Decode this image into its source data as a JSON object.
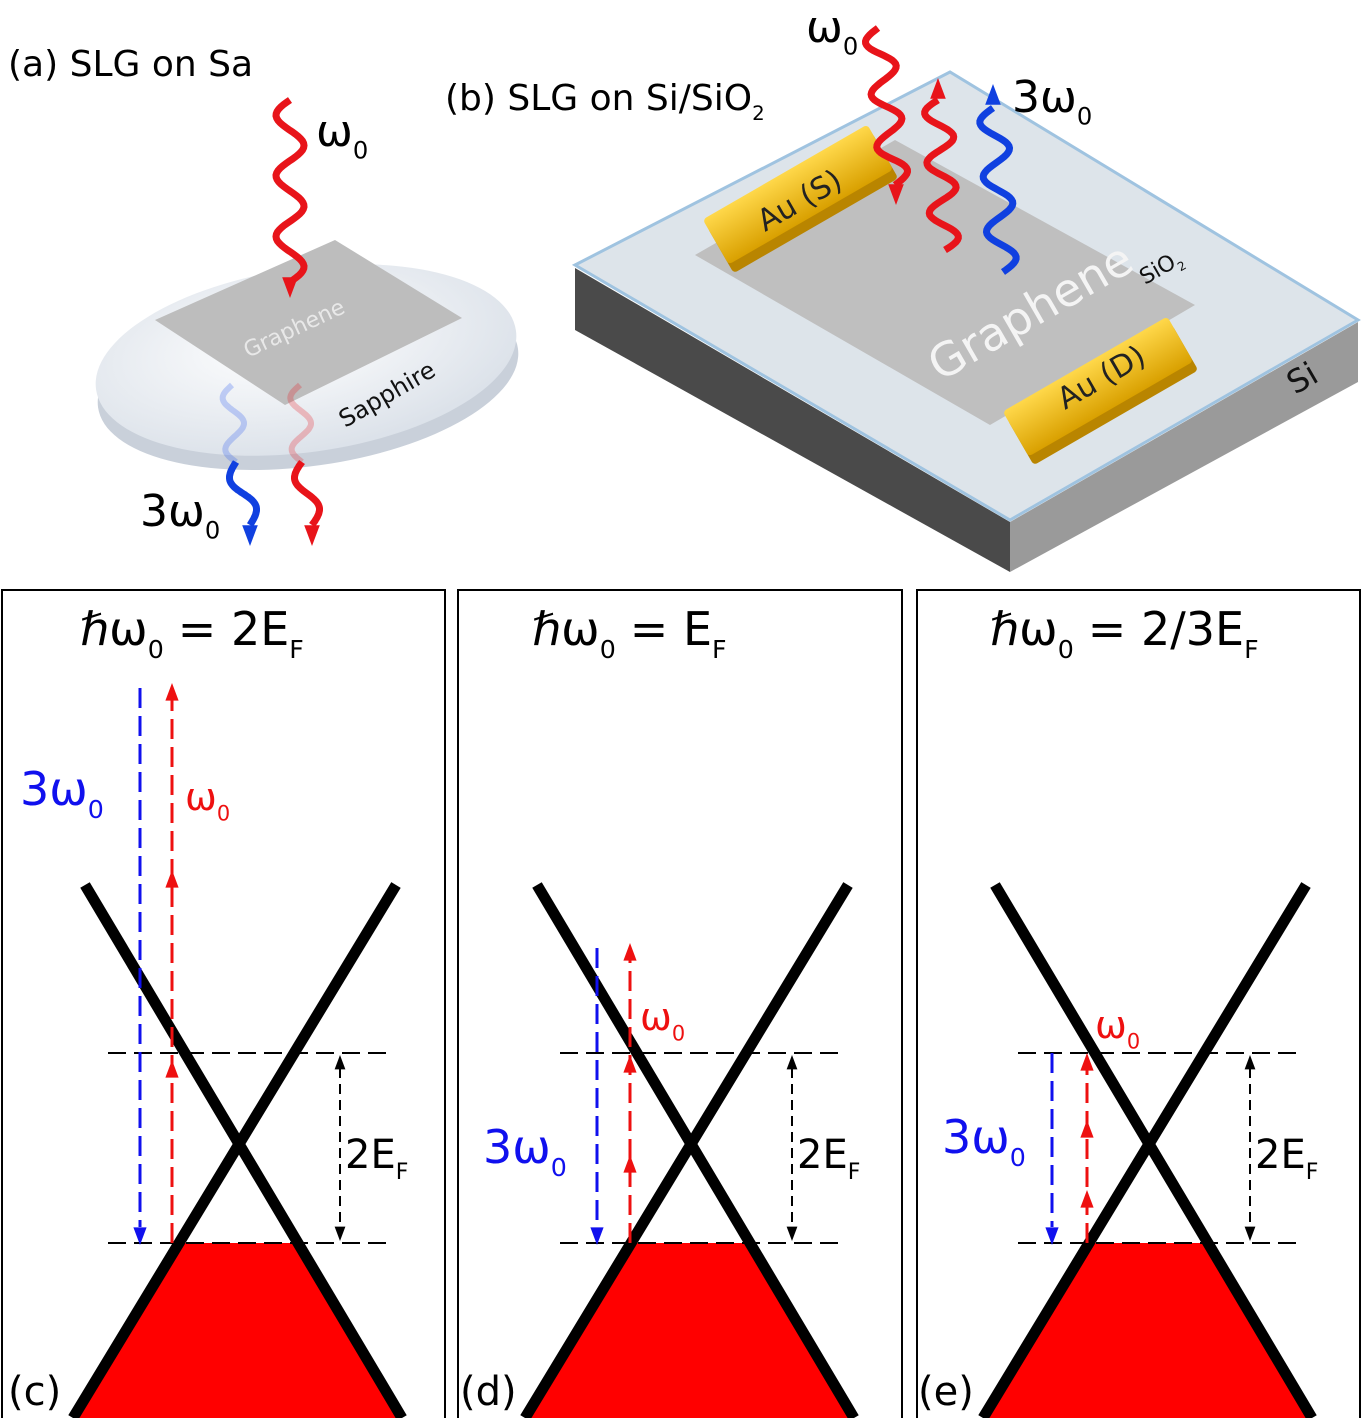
{
  "panel_a": {
    "title": "(a) SLG on Sa",
    "pump": {
      "text": "ω",
      "sub": "0"
    },
    "harmonic": {
      "text": "3ω",
      "sub": "0"
    },
    "graphene": "Graphene",
    "substrate": "Sapphire"
  },
  "panel_b": {
    "title": {
      "text": "(b) SLG on Si/SiO",
      "sub": "2"
    },
    "pump": {
      "text": "ω",
      "sub": "0"
    },
    "harmonic": {
      "text": "3ω",
      "sub": "0"
    },
    "source": "Au (S)",
    "drain": "Au (D)",
    "graphene": "Graphene",
    "oxide": {
      "text": "SiO",
      "sub": "2"
    },
    "silicon": "Si"
  },
  "panels": [
    {
      "label": "(c)",
      "condition": {
        "symbol": "ℏω",
        "symbol_sub": "0",
        "relation": "= 2E",
        "relation_sub": "F"
      },
      "harmonic": {
        "text": "3ω",
        "sub": "0"
      },
      "pump": {
        "text": "ω",
        "sub": "0"
      },
      "gap": {
        "text": "2E",
        "sub": "F"
      }
    },
    {
      "label": "(d)",
      "condition": {
        "symbol": "ℏω",
        "symbol_sub": "0",
        "relation": "= E",
        "relation_sub": "F"
      },
      "harmonic": {
        "text": "3ω",
        "sub": "0"
      },
      "pump": {
        "text": "ω",
        "sub": "0"
      },
      "gap": {
        "text": "2E",
        "sub": "F"
      }
    },
    {
      "label": "(e)",
      "condition": {
        "symbol": "ℏω",
        "symbol_sub": "0",
        "relation": "= 2/3E",
        "relation_sub": "F"
      },
      "harmonic": {
        "text": "3ω",
        "sub": "0"
      },
      "pump": {
        "text": "ω",
        "sub": "0"
      },
      "gap": {
        "text": "2E",
        "sub": "F"
      }
    }
  ]
}
